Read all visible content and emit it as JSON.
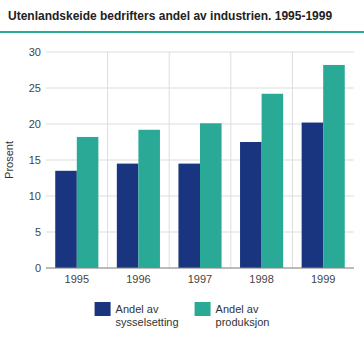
{
  "chart_data": {
    "type": "bar",
    "title": "Utenlandskeide bedrifters andel av industrien. 1995-1999",
    "ylabel": "Prosent",
    "categories": [
      "1995",
      "1996",
      "1997",
      "1998",
      "1999"
    ],
    "series": [
      {
        "name": "Andel av\nsysselsetting",
        "color": "#1a3580",
        "values": [
          13.5,
          14.5,
          14.5,
          17.5,
          20.2
        ]
      },
      {
        "name": "Andel av\nproduksjon",
        "color": "#2aaa96",
        "values": [
          18.2,
          19.2,
          20.1,
          24.2,
          28.2
        ]
      }
    ],
    "ylim": [
      0,
      30
    ],
    "yticks": [
      0,
      5,
      10,
      15,
      20,
      25,
      30
    ],
    "grid": true,
    "legend": "bottom"
  }
}
